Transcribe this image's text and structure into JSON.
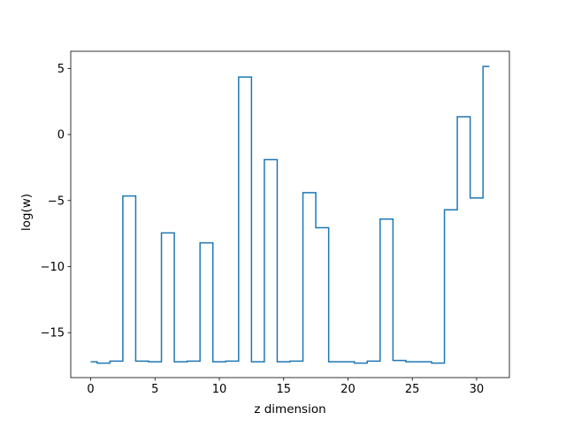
{
  "chart_data": {
    "type": "line",
    "drawstyle": "steps-mid",
    "xlabel": "z dimension",
    "ylabel": "log(w)",
    "xlim": [
      -1.55,
      32.55
    ],
    "ylim": [
      -18.4,
      6.3
    ],
    "x_ticks": [
      0,
      5,
      10,
      15,
      20,
      25,
      30
    ],
    "x_tick_labels": [
      "0",
      "5",
      "10",
      "15",
      "20",
      "25",
      "30"
    ],
    "y_ticks": [
      5,
      0,
      -5,
      -10,
      -15
    ],
    "y_tick_labels": [
      "5",
      "0",
      "−5",
      "−10",
      "−15"
    ],
    "grid": false,
    "legend": "none",
    "series": [
      {
        "color": "#1f77b4",
        "x": [
          0,
          1,
          2,
          3,
          4,
          5,
          6,
          7,
          8,
          9,
          10,
          11,
          12,
          13,
          14,
          15,
          16,
          17,
          18,
          19,
          20,
          21,
          22,
          23,
          24,
          25,
          26,
          27,
          28,
          29,
          30,
          31
        ],
        "y": [
          -17.2,
          -17.3,
          -17.15,
          -4.65,
          -17.15,
          -17.2,
          -7.45,
          -17.2,
          -17.15,
          -8.2,
          -17.2,
          -17.15,
          4.35,
          -17.2,
          -1.9,
          -17.2,
          -17.15,
          -4.4,
          -7.05,
          -17.2,
          -17.2,
          -17.3,
          -17.15,
          -6.4,
          -17.1,
          -17.2,
          -17.2,
          -17.3,
          -5.7,
          1.35,
          -4.8,
          5.15
        ]
      }
    ]
  }
}
